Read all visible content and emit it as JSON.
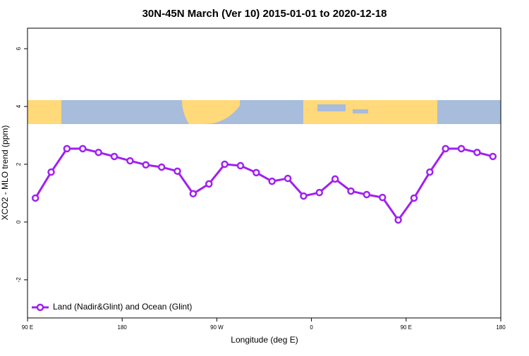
{
  "chart_data": {
    "type": "line",
    "title": "30N-45N March (Ver 10)   2015-01-01 to 2020-12-18",
    "x_label": "Longitude (deg E)",
    "y_label": "XCO2 - MLO trend (ppm)",
    "x": [
      97.5,
      112.5,
      127.5,
      142.5,
      157.5,
      172.5,
      187.5,
      202.5,
      217.5,
      232.5,
      247.5,
      262.5,
      277.5,
      292.5,
      307.5,
      322.5,
      337.5,
      352.5,
      367.5,
      382.5,
      397.5,
      412.5,
      427.5,
      442.5,
      457.5,
      472.5,
      487.5,
      502.5,
      517.5,
      532.5
    ],
    "series": [
      {
        "name": "Land (Nadir&Glint) and Ocean (Glint)",
        "color": "#a020f0",
        "values": [
          0.83,
          1.73,
          2.54,
          2.54,
          2.41,
          2.27,
          2.12,
          1.98,
          1.9,
          1.76,
          0.98,
          1.32,
          2.0,
          1.95,
          1.71,
          1.41,
          1.51,
          0.9,
          1.02,
          1.49,
          1.07,
          0.95,
          0.85,
          0.07,
          0.83,
          1.73,
          2.54,
          2.54,
          2.41,
          2.27
        ]
      }
    ],
    "xlim": [
      90,
      540
    ],
    "xticks": [
      {
        "value": 90,
        "label": "90 E"
      },
      {
        "value": 180,
        "label": "180"
      },
      {
        "value": 270,
        "label": "90 W"
      },
      {
        "value": 360,
        "label": "0"
      },
      {
        "value": 450,
        "label": "90 E"
      },
      {
        "value": 540,
        "label": "180"
      }
    ],
    "ylim": [
      -3.32,
      6.71
    ],
    "yticks": [
      -2,
      0,
      2,
      4,
      6
    ],
    "legend": "bottom-left"
  }
}
